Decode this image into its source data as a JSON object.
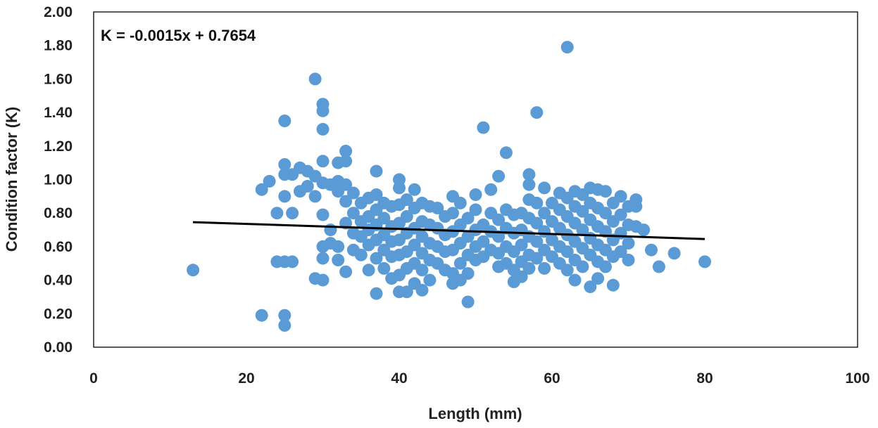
{
  "chart_data": {
    "type": "scatter",
    "xlabel": "Length (mm)",
    "ylabel": "Condition factor (K)",
    "annotation": "K = -0.0015x + 0.7654",
    "xlim": [
      0,
      100
    ],
    "ylim": [
      0,
      2
    ],
    "x_ticks": [
      0,
      20,
      40,
      60,
      80,
      100
    ],
    "x_tick_labels": [
      "0",
      "20",
      "40",
      "60",
      "80",
      "100"
    ],
    "y_ticks": [
      0,
      0.2,
      0.4,
      0.6,
      0.8,
      1.0,
      1.2,
      1.4,
      1.6,
      1.8,
      2.0
    ],
    "y_tick_labels": [
      "0.00",
      "0.20",
      "0.40",
      "0.60",
      "0.80",
      "1.00",
      "1.20",
      "1.40",
      "1.60",
      "1.80",
      "2.00"
    ],
    "grid": false,
    "legend": "none",
    "marker_color": "#5B9BD5",
    "trendline": {
      "slope": -0.0015,
      "intercept": 0.7654,
      "x_range": [
        13,
        80
      ],
      "color": "#000000"
    },
    "points": [
      [
        13,
        0.46
      ],
      [
        22,
        0.19
      ],
      [
        22,
        0.94
      ],
      [
        23,
        0.99
      ],
      [
        24,
        0.8
      ],
      [
        24,
        0.51
      ],
      [
        25,
        1.35
      ],
      [
        25,
        1.09
      ],
      [
        25,
        1.03
      ],
      [
        25,
        0.9
      ],
      [
        25,
        0.51
      ],
      [
        25,
        0.19
      ],
      [
        25,
        0.13
      ],
      [
        26,
        0.51
      ],
      [
        26,
        0.8
      ],
      [
        26,
        1.03
      ],
      [
        27,
        1.07
      ],
      [
        27,
        0.93
      ],
      [
        28,
        1.05
      ],
      [
        28,
        0.96
      ],
      [
        29,
        1.6
      ],
      [
        29,
        0.41
      ],
      [
        29,
        1.02
      ],
      [
        29,
        0.9
      ],
      [
        30,
        1.45
      ],
      [
        30,
        1.41
      ],
      [
        30,
        1.3
      ],
      [
        30,
        1.11
      ],
      [
        30,
        0.98
      ],
      [
        30,
        0.79
      ],
      [
        30,
        0.6
      ],
      [
        30,
        0.53
      ],
      [
        30,
        0.4
      ],
      [
        31,
        0.97
      ],
      [
        31,
        0.7
      ],
      [
        31,
        0.62
      ],
      [
        32,
        1.1
      ],
      [
        32,
        0.99
      ],
      [
        32,
        0.93
      ],
      [
        32,
        0.6
      ],
      [
        32,
        0.52
      ],
      [
        33,
        1.17
      ],
      [
        33,
        1.11
      ],
      [
        33,
        0.97
      ],
      [
        33,
        0.87
      ],
      [
        33,
        0.74
      ],
      [
        33,
        0.45
      ],
      [
        34,
        0.92
      ],
      [
        34,
        0.8
      ],
      [
        34,
        0.68
      ],
      [
        34,
        0.58
      ],
      [
        35,
        0.86
      ],
      [
        35,
        0.75
      ],
      [
        35,
        0.66
      ],
      [
        35,
        0.55
      ],
      [
        36,
        0.89
      ],
      [
        36,
        0.78
      ],
      [
        36,
        0.7
      ],
      [
        36,
        0.61
      ],
      [
        36,
        0.46
      ],
      [
        37,
        1.05
      ],
      [
        37,
        0.91
      ],
      [
        37,
        0.82
      ],
      [
        37,
        0.73
      ],
      [
        37,
        0.64
      ],
      [
        37,
        0.53
      ],
      [
        37,
        0.32
      ],
      [
        38,
        0.86
      ],
      [
        38,
        0.77
      ],
      [
        38,
        0.67
      ],
      [
        38,
        0.58
      ],
      [
        38,
        0.47
      ],
      [
        39,
        0.84
      ],
      [
        39,
        0.72
      ],
      [
        39,
        0.63
      ],
      [
        39,
        0.54
      ],
      [
        39,
        0.41
      ],
      [
        40,
        1.0
      ],
      [
        40,
        0.95
      ],
      [
        40,
        0.85
      ],
      [
        40,
        0.74
      ],
      [
        40,
        0.64
      ],
      [
        40,
        0.55
      ],
      [
        40,
        0.43
      ],
      [
        40,
        0.33
      ],
      [
        41,
        0.88
      ],
      [
        41,
        0.78
      ],
      [
        41,
        0.68
      ],
      [
        41,
        0.57
      ],
      [
        41,
        0.47
      ],
      [
        41,
        0.33
      ],
      [
        42,
        0.94
      ],
      [
        42,
        0.83
      ],
      [
        42,
        0.71
      ],
      [
        42,
        0.61
      ],
      [
        42,
        0.5
      ],
      [
        42,
        0.38
      ],
      [
        43,
        0.86
      ],
      [
        43,
        0.75
      ],
      [
        43,
        0.66
      ],
      [
        43,
        0.56
      ],
      [
        43,
        0.46
      ],
      [
        43,
        0.34
      ],
      [
        44,
        0.84
      ],
      [
        44,
        0.73
      ],
      [
        44,
        0.62
      ],
      [
        44,
        0.52
      ],
      [
        44,
        0.4
      ],
      [
        45,
        0.83
      ],
      [
        45,
        0.71
      ],
      [
        45,
        0.6
      ],
      [
        45,
        0.5
      ],
      [
        46,
        0.78
      ],
      [
        46,
        0.67
      ],
      [
        46,
        0.57
      ],
      [
        46,
        0.46
      ],
      [
        47,
        0.9
      ],
      [
        47,
        0.8
      ],
      [
        47,
        0.69
      ],
      [
        47,
        0.58
      ],
      [
        47,
        0.44
      ],
      [
        47,
        0.38
      ],
      [
        48,
        0.86
      ],
      [
        48,
        0.73
      ],
      [
        48,
        0.62
      ],
      [
        48,
        0.5
      ],
      [
        48,
        0.4
      ],
      [
        49,
        0.77
      ],
      [
        49,
        0.66
      ],
      [
        49,
        0.55
      ],
      [
        49,
        0.44
      ],
      [
        49,
        0.27
      ],
      [
        50,
        0.91
      ],
      [
        50,
        0.82
      ],
      [
        50,
        0.7
      ],
      [
        50,
        0.6
      ],
      [
        50,
        0.52
      ],
      [
        51,
        1.31
      ],
      [
        51,
        0.73
      ],
      [
        51,
        0.63
      ],
      [
        51,
        0.54
      ],
      [
        52,
        0.94
      ],
      [
        52,
        0.8
      ],
      [
        52,
        0.69
      ],
      [
        52,
        0.58
      ],
      [
        53,
        1.02
      ],
      [
        53,
        0.76
      ],
      [
        53,
        0.66
      ],
      [
        53,
        0.56
      ],
      [
        53,
        0.48
      ],
      [
        54,
        1.16
      ],
      [
        54,
        0.82
      ],
      [
        54,
        0.71
      ],
      [
        54,
        0.6
      ],
      [
        54,
        0.5
      ],
      [
        55,
        0.79
      ],
      [
        55,
        0.68
      ],
      [
        55,
        0.57
      ],
      [
        55,
        0.46
      ],
      [
        55,
        0.39
      ],
      [
        56,
        0.8
      ],
      [
        56,
        0.7
      ],
      [
        56,
        0.61
      ],
      [
        56,
        0.51
      ],
      [
        56,
        0.42
      ],
      [
        57,
        1.03
      ],
      [
        57,
        0.97
      ],
      [
        57,
        0.88
      ],
      [
        57,
        0.77
      ],
      [
        57,
        0.66
      ],
      [
        57,
        0.55
      ],
      [
        57,
        0.47
      ],
      [
        58,
        1.4
      ],
      [
        58,
        0.86
      ],
      [
        58,
        0.74
      ],
      [
        58,
        0.63
      ],
      [
        58,
        0.53
      ],
      [
        59,
        0.95
      ],
      [
        59,
        0.8
      ],
      [
        59,
        0.69
      ],
      [
        59,
        0.58
      ],
      [
        59,
        0.47
      ],
      [
        60,
        0.86
      ],
      [
        60,
        0.75
      ],
      [
        60,
        0.64
      ],
      [
        60,
        0.54
      ],
      [
        61,
        0.92
      ],
      [
        61,
        0.82
      ],
      [
        61,
        0.71
      ],
      [
        61,
        0.6
      ],
      [
        61,
        0.5
      ],
      [
        62,
        1.79
      ],
      [
        62,
        0.89
      ],
      [
        62,
        0.78
      ],
      [
        62,
        0.67
      ],
      [
        62,
        0.57
      ],
      [
        62,
        0.46
      ],
      [
        63,
        0.93
      ],
      [
        63,
        0.84
      ],
      [
        63,
        0.74
      ],
      [
        63,
        0.63
      ],
      [
        63,
        0.52
      ],
      [
        63,
        0.4
      ],
      [
        64,
        0.91
      ],
      [
        64,
        0.81
      ],
      [
        64,
        0.7
      ],
      [
        64,
        0.59
      ],
      [
        64,
        0.48
      ],
      [
        65,
        0.95
      ],
      [
        65,
        0.86
      ],
      [
        65,
        0.76
      ],
      [
        65,
        0.65
      ],
      [
        65,
        0.55
      ],
      [
        65,
        0.36
      ],
      [
        66,
        0.94
      ],
      [
        66,
        0.83
      ],
      [
        66,
        0.72
      ],
      [
        66,
        0.61
      ],
      [
        66,
        0.51
      ],
      [
        66,
        0.41
      ],
      [
        67,
        0.93
      ],
      [
        67,
        0.8
      ],
      [
        67,
        0.69
      ],
      [
        67,
        0.58
      ],
      [
        67,
        0.48
      ],
      [
        68,
        0.86
      ],
      [
        68,
        0.75
      ],
      [
        68,
        0.64
      ],
      [
        68,
        0.54
      ],
      [
        68,
        0.37
      ],
      [
        69,
        0.9
      ],
      [
        69,
        0.79
      ],
      [
        69,
        0.68
      ],
      [
        69,
        0.57
      ],
      [
        70,
        0.84
      ],
      [
        70,
        0.73
      ],
      [
        70,
        0.62
      ],
      [
        70,
        0.52
      ],
      [
        71,
        0.88
      ],
      [
        71,
        0.84
      ],
      [
        71,
        0.72
      ],
      [
        72,
        0.7
      ],
      [
        73,
        0.58
      ],
      [
        74,
        0.48
      ],
      [
        76,
        0.56
      ],
      [
        80,
        0.51
      ]
    ]
  }
}
